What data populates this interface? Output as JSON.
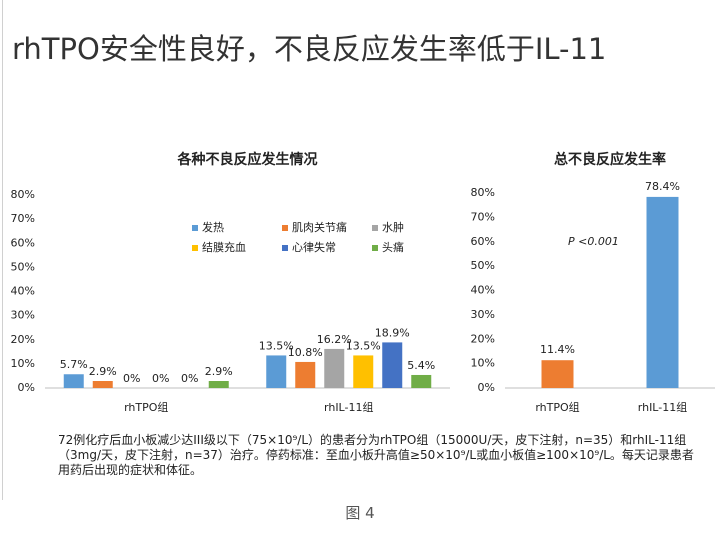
{
  "title": "rhTPO安全性良好，不良反应发生率低于IL-11",
  "note": "72例化疗后血小板减少达III级以下（75×10⁹/L）的患者分为rhTPO组（15000U/天，皮下注射，n=35）和rhIL-11组（3mg/天，皮下注射，n=37）治疗。停药标准：至血小板升高值≥50×10⁹/L或血小板值≥100×10⁹/L。每天记录患者用药后出现的症状和体征。",
  "figure_label": "图 4",
  "chart_data": [
    {
      "type": "bar",
      "title": "各种不良反应发生情况",
      "categories": [
        "rhTPO组",
        "rhIL-11组"
      ],
      "series": [
        {
          "name": "发热",
          "color": "#5b9bd5",
          "values": [
            5.7,
            13.5
          ],
          "value_labels": [
            "5.7%",
            "13.5%"
          ]
        },
        {
          "name": "肌肉关节痛",
          "color": "#ed7d31",
          "values": [
            2.9,
            10.8
          ],
          "value_labels": [
            "2.9%",
            "10.8%"
          ]
        },
        {
          "name": "水肿",
          "color": "#a5a5a5",
          "values": [
            0,
            16.2
          ],
          "value_labels": [
            "0%",
            "16.2%"
          ]
        },
        {
          "name": "结膜充血",
          "color": "#ffc000",
          "values": [
            0,
            13.5
          ],
          "value_labels": [
            "0%",
            "13.5%"
          ]
        },
        {
          "name": "心律失常",
          "color": "#4472c4",
          "values": [
            0,
            18.9
          ],
          "value_labels": [
            "0%",
            "18.9%"
          ]
        },
        {
          "name": "头痛",
          "color": "#70ad47",
          "values": [
            2.9,
            5.4
          ],
          "value_labels": [
            "2.9%",
            "5.4%"
          ]
        }
      ],
      "ylim": [
        0,
        80
      ],
      "yticks": [
        {
          "value": 0,
          "label": "0%"
        },
        {
          "value": 10,
          "label": "10%"
        },
        {
          "value": 20,
          "label": "20%"
        },
        {
          "value": 30,
          "label": "30%"
        },
        {
          "value": 40,
          "label": "40%"
        },
        {
          "value": 50,
          "label": "50%"
        },
        {
          "value": 60,
          "label": "60%"
        },
        {
          "value": 70,
          "label": "70%"
        },
        {
          "value": 80,
          "label": "80%"
        }
      ]
    },
    {
      "type": "bar",
      "title": "总不良反应发生率",
      "categories": [
        "rhTPO组",
        "rhIL-11组"
      ],
      "values": [
        11.4,
        78.4
      ],
      "value_labels": [
        "11.4%",
        "78.4%"
      ],
      "colors": [
        "#ed7d31",
        "#5b9bd5"
      ],
      "annotation": "P <0.001",
      "ylim": [
        0,
        80
      ],
      "yticks": [
        {
          "value": 0,
          "label": "0%"
        },
        {
          "value": 10,
          "label": "10%"
        },
        {
          "value": 20,
          "label": "20%"
        },
        {
          "value": 30,
          "label": "30%"
        },
        {
          "value": 40,
          "label": "40%"
        },
        {
          "value": 50,
          "label": "50%"
        },
        {
          "value": 60,
          "label": "60%"
        },
        {
          "value": 70,
          "label": "70%"
        },
        {
          "value": 80,
          "label": "80%"
        }
      ]
    }
  ]
}
